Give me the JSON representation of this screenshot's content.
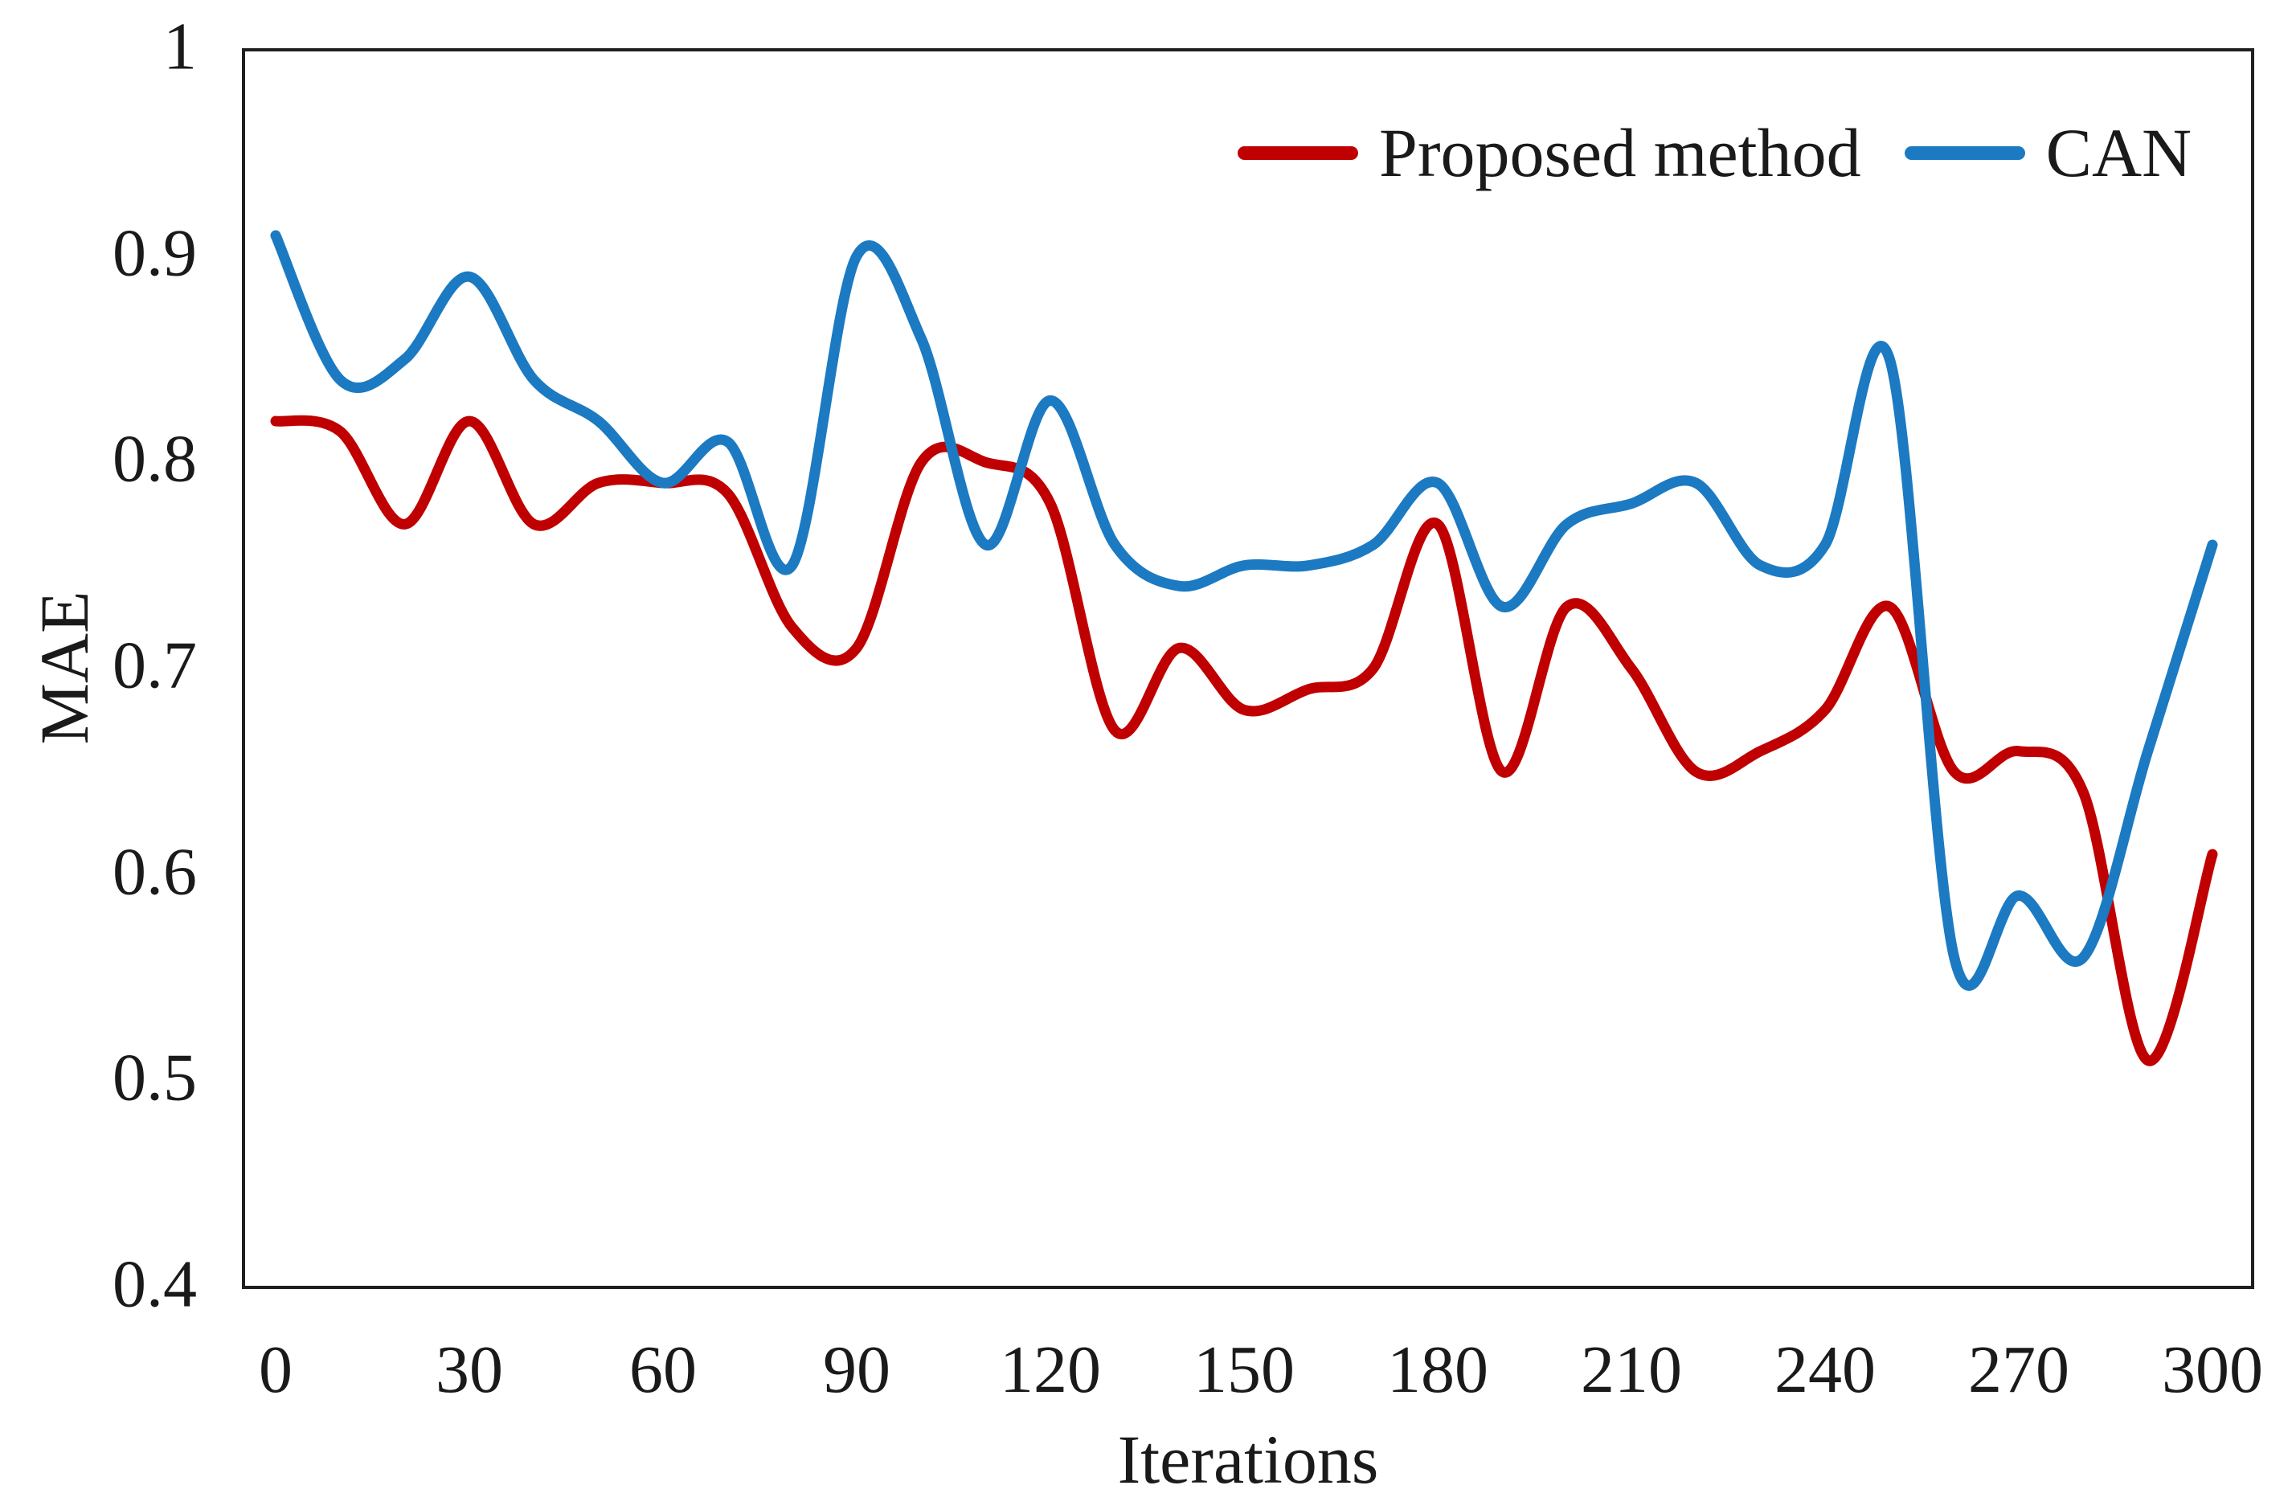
{
  "chart_data": {
    "type": "line",
    "title": "",
    "xlabel": "Iterations",
    "ylabel": "MAE",
    "xlim": [
      0,
      300
    ],
    "ylim": [
      0.4,
      1.0
    ],
    "grid": false,
    "legend_position": "top-right",
    "x_tick_labels": [
      "0",
      "30",
      "60",
      "90",
      "120",
      "150",
      "180",
      "210",
      "240",
      "270",
      "300"
    ],
    "x_tick_values": [
      0,
      30,
      60,
      90,
      120,
      150,
      180,
      210,
      240,
      270,
      300
    ],
    "y_tick_labels": [
      "1",
      "0.9",
      "0.8",
      "0.7",
      "0.6",
      "0.5",
      "0.4"
    ],
    "y_tick_values": [
      1.0,
      0.9,
      0.8,
      0.7,
      0.6,
      0.5,
      0.4
    ],
    "x": [
      0,
      10,
      20,
      30,
      40,
      50,
      60,
      70,
      80,
      90,
      100,
      110,
      120,
      130,
      140,
      150,
      160,
      170,
      180,
      190,
      200,
      210,
      220,
      230,
      240,
      250,
      260,
      270,
      280,
      290,
      300
    ],
    "series": [
      {
        "name": "Proposed method",
        "color": "#C00000",
        "values": [
          0.82,
          0.815,
          0.77,
          0.82,
          0.77,
          0.79,
          0.79,
          0.785,
          0.72,
          0.71,
          0.8,
          0.8,
          0.78,
          0.67,
          0.71,
          0.68,
          0.69,
          0.7,
          0.77,
          0.65,
          0.73,
          0.7,
          0.65,
          0.66,
          0.68,
          0.73,
          0.65,
          0.66,
          0.64,
          0.51,
          0.61
        ]
      },
      {
        "name": "CAN",
        "color": "#1B7AC2",
        "values": [
          0.91,
          0.84,
          0.85,
          0.89,
          0.84,
          0.82,
          0.79,
          0.81,
          0.75,
          0.9,
          0.86,
          0.76,
          0.83,
          0.76,
          0.74,
          0.75,
          0.75,
          0.76,
          0.79,
          0.73,
          0.77,
          0.78,
          0.79,
          0.75,
          0.76,
          0.85,
          0.56,
          0.59,
          0.56,
          0.66,
          0.76
        ]
      }
    ],
    "frame_color": "#1f1f1f",
    "line_width": 13
  }
}
